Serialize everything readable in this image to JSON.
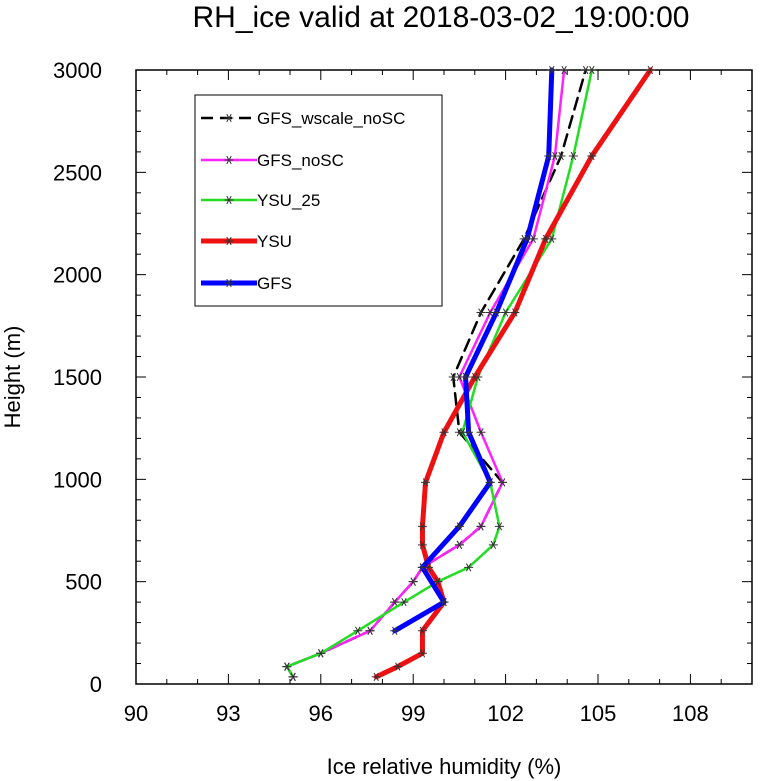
{
  "chart_data": {
    "type": "line",
    "title": "RH_ice valid at 2018-03-02_19:00:00",
    "xlabel": "Ice relative humidity (%)",
    "ylabel": "Height (m)",
    "xlim": [
      90,
      110
    ],
    "ylim": [
      0,
      3000
    ],
    "xticks": [
      90,
      93,
      96,
      99,
      102,
      105,
      108
    ],
    "yticks": [
      0,
      500,
      1000,
      1500,
      2000,
      2500,
      3000
    ],
    "xtick_labels": [
      "90",
      "93",
      "96",
      "99",
      "102",
      "105",
      "108"
    ],
    "ytick_labels": [
      "0",
      "500",
      "1000",
      "1500",
      "2000",
      "2500",
      "3000"
    ],
    "legend_position": "top-left",
    "series": [
      {
        "name": "GFS_wscale_noSC",
        "color": "#000000",
        "dash": "dashed",
        "width": 2.5,
        "marker": "star",
        "points": [
          [
            95.1,
            35
          ],
          [
            94.9,
            85
          ],
          [
            96.0,
            150
          ],
          [
            97.6,
            260
          ],
          [
            98.4,
            400
          ],
          [
            99.0,
            500
          ],
          [
            99.3,
            570
          ],
          [
            100.5,
            680
          ],
          [
            101.2,
            770
          ],
          [
            101.9,
            985
          ],
          [
            100.5,
            1230
          ],
          [
            100.3,
            1500
          ],
          [
            101.2,
            1815
          ],
          [
            102.6,
            2175
          ],
          [
            103.8,
            2580
          ],
          [
            104.6,
            3000
          ]
        ]
      },
      {
        "name": "GFS_noSC",
        "color": "#ff22ff",
        "dash": "solid",
        "width": 2.5,
        "marker": "star",
        "points": [
          [
            95.1,
            35
          ],
          [
            94.9,
            85
          ],
          [
            96.0,
            150
          ],
          [
            97.6,
            260
          ],
          [
            98.4,
            400
          ],
          [
            99.0,
            500
          ],
          [
            99.3,
            570
          ],
          [
            100.5,
            680
          ],
          [
            101.2,
            770
          ],
          [
            101.9,
            985
          ],
          [
            101.2,
            1230
          ],
          [
            100.5,
            1500
          ],
          [
            101.5,
            1815
          ],
          [
            102.9,
            2175
          ],
          [
            103.6,
            2580
          ],
          [
            103.9,
            3000
          ]
        ]
      },
      {
        "name": "YSU_25",
        "color": "#22dd22",
        "dash": "solid",
        "width": 2.5,
        "marker": "star",
        "points": [
          [
            95.1,
            35
          ],
          [
            94.9,
            85
          ],
          [
            96.0,
            150
          ],
          [
            97.2,
            260
          ],
          [
            98.7,
            400
          ],
          [
            99.8,
            500
          ],
          [
            100.8,
            570
          ],
          [
            101.6,
            680
          ],
          [
            101.8,
            770
          ],
          [
            101.5,
            985
          ],
          [
            100.6,
            1230
          ],
          [
            101.1,
            1500
          ],
          [
            102.0,
            1815
          ],
          [
            103.5,
            2175
          ],
          [
            104.2,
            2580
          ],
          [
            104.8,
            3000
          ]
        ]
      },
      {
        "name": "YSU",
        "color": "#ee1111",
        "dash": "solid",
        "width": 5,
        "marker": "star",
        "points": [
          [
            97.8,
            35
          ],
          [
            98.5,
            85
          ],
          [
            99.3,
            150
          ],
          [
            99.3,
            260
          ],
          [
            100.0,
            400
          ],
          [
            99.8,
            500
          ],
          [
            99.5,
            570
          ],
          [
            99.3,
            680
          ],
          [
            99.3,
            770
          ],
          [
            99.4,
            985
          ],
          [
            100.0,
            1230
          ],
          [
            101.0,
            1500
          ],
          [
            102.3,
            1815
          ],
          [
            103.3,
            2175
          ],
          [
            104.8,
            2580
          ],
          [
            106.7,
            3000
          ]
        ]
      },
      {
        "name": "GFS",
        "color": "#0000ff",
        "dash": "solid",
        "width": 5,
        "marker": "star",
        "points": [
          [
            98.4,
            260
          ],
          [
            100.0,
            400
          ],
          [
            99.3,
            570
          ],
          [
            100.5,
            770
          ],
          [
            101.5,
            985
          ],
          [
            100.8,
            1230
          ],
          [
            100.7,
            1500
          ],
          [
            101.7,
            1815
          ],
          [
            102.7,
            2175
          ],
          [
            103.4,
            2580
          ],
          [
            103.5,
            3000
          ]
        ]
      }
    ]
  }
}
